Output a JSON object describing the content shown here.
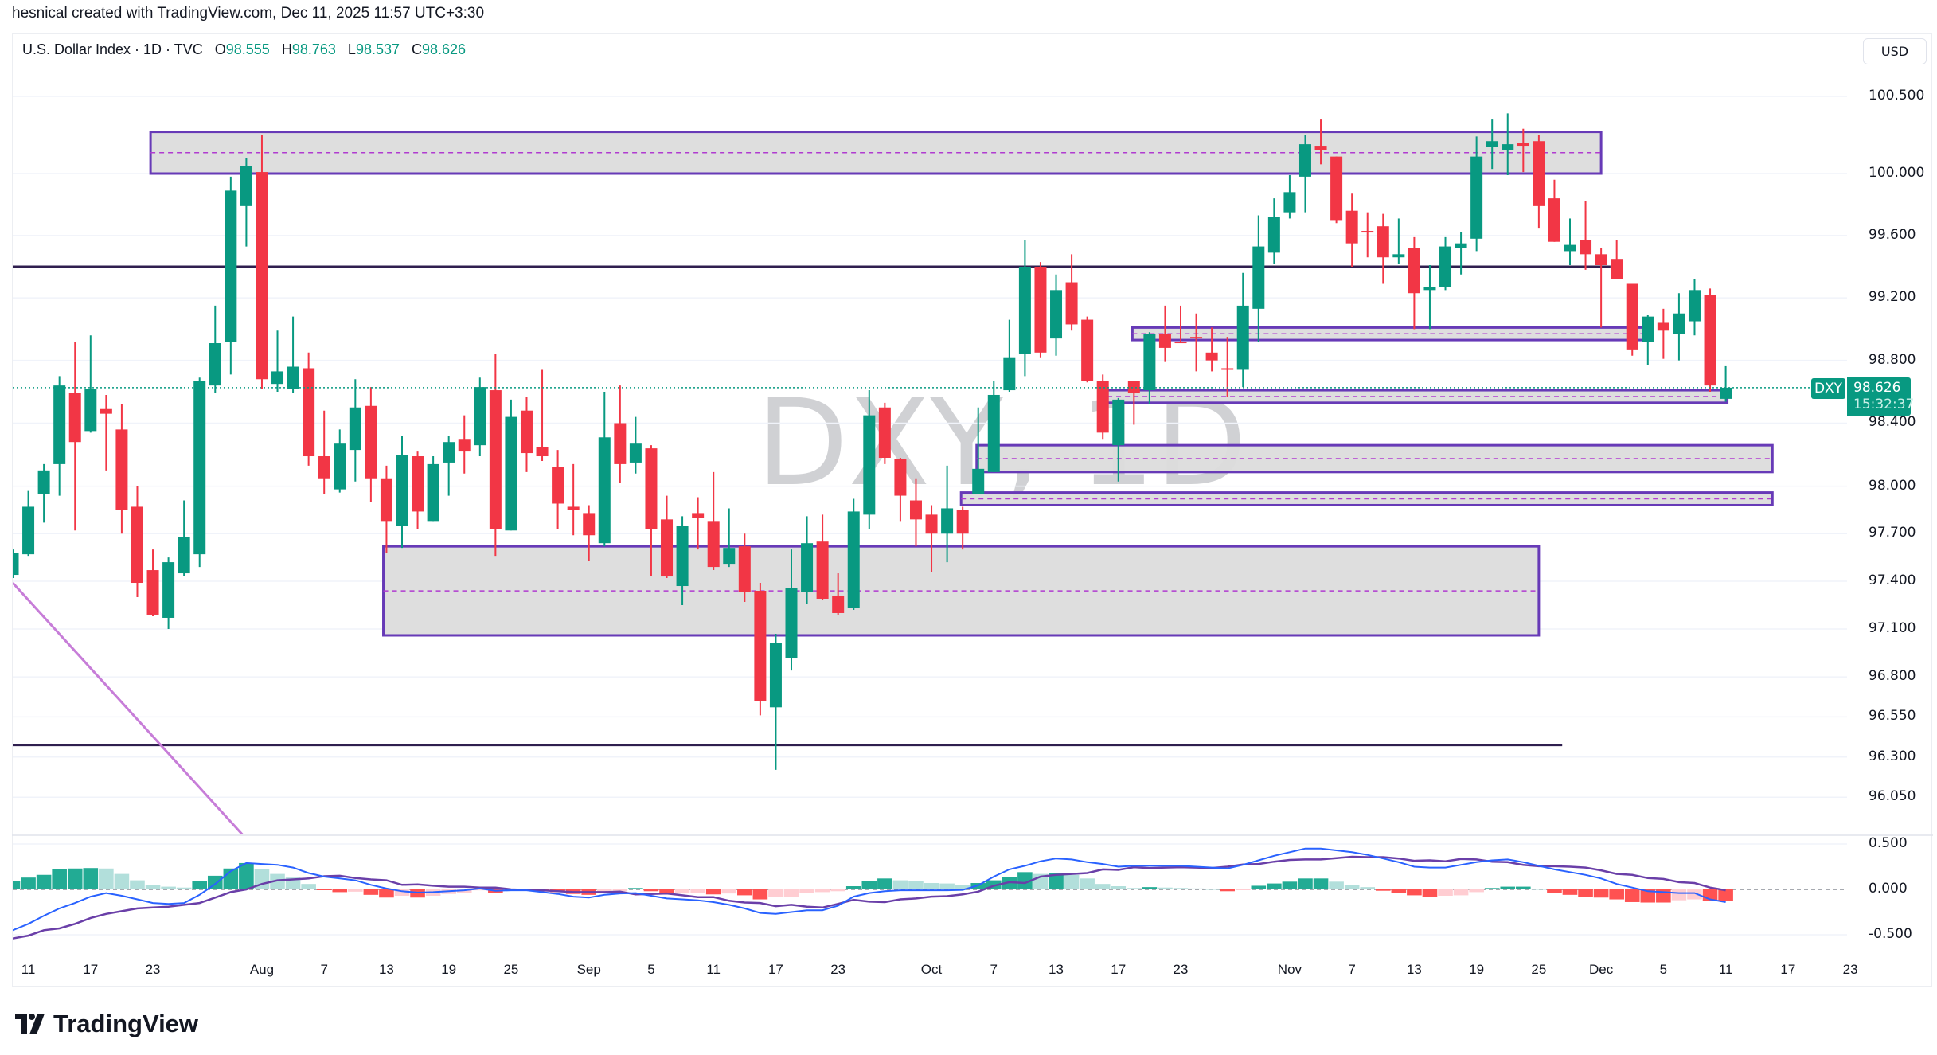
{
  "credit": "hesnical created with TradingView.com, Dec 11, 2025 11:57 UTC+3:30",
  "legend": {
    "symbol": "U.S. Dollar Index · 1D · TVC",
    "open_label": "O",
    "open": "98.555",
    "high_label": "H",
    "high": "98.763",
    "low_label": "L",
    "low": "98.537",
    "close_label": "C",
    "close": "98.626"
  },
  "currency_button": "USD",
  "watermark": "DXY, 1D",
  "logo": "TradingView",
  "last_price": {
    "symbol": "DXY",
    "price": "98.626",
    "countdown": "15:32:37"
  },
  "colors": {
    "up": "#089981",
    "down": "#f23645",
    "zone_fill": "#dcdcdc",
    "zone_border": "#673ab7",
    "zone_mid": "#b03bd0",
    "level_line": "#2f1f4f",
    "trend_line": "#c77dd8",
    "macd_line": "#2962ff",
    "signal_line": "#6a3fa8",
    "hist_up_strong": "#22ab94",
    "hist_up_weak": "#b2dfdb",
    "hist_down_strong": "#ff5252",
    "hist_down_weak": "#ffcdd2"
  },
  "chart_data": {
    "type": "candlestick",
    "title": "U.S. Dollar Index · 1D · TVC",
    "scale": "log",
    "grid": true,
    "candle_fields": [
      "open",
      "high",
      "low",
      "close"
    ],
    "candles": [
      [
        97.44,
        97.6,
        97.42,
        97.58
      ],
      [
        97.57,
        97.97,
        97.56,
        97.87
      ],
      [
        97.95,
        98.14,
        97.77,
        98.1
      ],
      [
        98.14,
        98.7,
        97.94,
        98.64
      ],
      [
        98.59,
        98.92,
        97.72,
        98.28
      ],
      [
        98.35,
        98.96,
        98.34,
        98.62
      ],
      [
        98.49,
        98.58,
        98.1,
        98.46
      ],
      [
        98.36,
        98.52,
        97.7,
        97.85
      ],
      [
        97.87,
        98.0,
        97.3,
        97.39
      ],
      [
        97.47,
        97.6,
        97.18,
        97.19
      ],
      [
        97.17,
        97.55,
        97.1,
        97.52
      ],
      [
        97.45,
        97.91,
        97.43,
        97.68
      ],
      [
        97.57,
        98.69,
        97.49,
        98.67
      ],
      [
        98.64,
        99.15,
        98.59,
        98.91
      ],
      [
        98.92,
        99.98,
        98.71,
        99.89
      ],
      [
        99.79,
        100.1,
        99.53,
        100.05
      ],
      [
        100.01,
        100.25,
        98.62,
        98.68
      ],
      [
        98.65,
        98.99,
        98.6,
        98.73
      ],
      [
        98.62,
        99.08,
        98.59,
        98.76
      ],
      [
        98.75,
        98.85,
        98.13,
        98.19
      ],
      [
        98.19,
        98.48,
        97.95,
        98.05
      ],
      [
        97.98,
        98.36,
        97.96,
        98.27
      ],
      [
        98.23,
        98.68,
        98.03,
        98.5
      ],
      [
        98.51,
        98.63,
        97.9,
        98.05
      ],
      [
        98.05,
        98.13,
        97.58,
        97.78
      ],
      [
        97.75,
        98.32,
        97.61,
        98.2
      ],
      [
        98.19,
        98.22,
        97.73,
        97.84
      ],
      [
        97.78,
        98.19,
        97.78,
        98.14
      ],
      [
        98.15,
        98.32,
        97.94,
        98.28
      ],
      [
        98.3,
        98.45,
        98.08,
        98.22
      ],
      [
        98.26,
        98.69,
        98.19,
        98.63
      ],
      [
        98.61,
        98.84,
        97.56,
        97.73
      ],
      [
        97.72,
        98.55,
        97.72,
        98.44
      ],
      [
        98.48,
        98.57,
        98.09,
        98.21
      ],
      [
        98.25,
        98.74,
        98.16,
        98.19
      ],
      [
        98.12,
        98.23,
        97.73,
        97.89
      ],
      [
        97.87,
        98.14,
        97.69,
        97.85
      ],
      [
        97.83,
        97.88,
        97.53,
        97.69
      ],
      [
        97.64,
        98.6,
        97.62,
        98.31
      ],
      [
        98.4,
        98.64,
        98.02,
        98.14
      ],
      [
        98.15,
        98.44,
        98.08,
        98.27
      ],
      [
        98.24,
        98.26,
        97.43,
        97.73
      ],
      [
        97.79,
        97.94,
        97.42,
        97.43
      ],
      [
        97.37,
        97.81,
        97.25,
        97.75
      ],
      [
        97.83,
        97.93,
        97.6,
        97.8
      ],
      [
        97.78,
        98.09,
        97.47,
        97.49
      ],
      [
        97.51,
        97.86,
        97.49,
        97.61
      ],
      [
        97.62,
        97.7,
        97.27,
        97.33
      ],
      [
        97.34,
        97.39,
        96.56,
        96.65
      ],
      [
        96.61,
        97.07,
        96.22,
        97.01
      ],
      [
        96.92,
        97.6,
        96.84,
        97.36
      ],
      [
        97.33,
        97.81,
        97.26,
        97.64
      ],
      [
        97.65,
        97.82,
        97.28,
        97.29
      ],
      [
        97.31,
        97.45,
        97.19,
        97.2
      ],
      [
        97.23,
        97.92,
        97.22,
        97.84
      ],
      [
        97.82,
        98.61,
        97.73,
        98.45
      ],
      [
        98.5,
        98.53,
        98.14,
        98.18
      ],
      [
        98.17,
        98.18,
        97.78,
        97.94
      ],
      [
        97.91,
        98.05,
        97.62,
        97.79
      ],
      [
        97.82,
        97.88,
        97.46,
        97.7
      ],
      [
        97.7,
        98.13,
        97.52,
        97.86
      ],
      [
        97.85,
        97.87,
        97.6,
        97.7
      ],
      [
        97.95,
        98.5,
        97.95,
        98.11
      ],
      [
        98.09,
        98.67,
        98.09,
        98.58
      ],
      [
        98.61,
        99.06,
        98.6,
        98.82
      ],
      [
        98.84,
        99.57,
        98.7,
        99.4
      ],
      [
        99.4,
        99.43,
        98.82,
        98.85
      ],
      [
        98.94,
        99.35,
        98.83,
        99.25
      ],
      [
        99.3,
        99.48,
        98.99,
        99.03
      ],
      [
        99.06,
        99.08,
        98.66,
        98.67
      ],
      [
        98.67,
        98.71,
        98.3,
        98.34
      ],
      [
        98.26,
        98.56,
        98.03,
        98.55
      ],
      [
        98.67,
        98.67,
        98.39,
        98.59
      ],
      [
        98.61,
        98.98,
        98.52,
        98.97
      ],
      [
        98.97,
        99.15,
        98.79,
        98.88
      ],
      [
        98.92,
        99.15,
        98.91,
        98.91
      ],
      [
        98.95,
        99.1,
        98.73,
        98.94
      ],
      [
        98.85,
        99.01,
        98.73,
        98.8
      ],
      [
        98.75,
        98.95,
        98.57,
        98.74
      ],
      [
        98.74,
        99.36,
        98.63,
        99.15
      ],
      [
        99.13,
        99.73,
        98.92,
        99.53
      ],
      [
        99.49,
        99.84,
        99.42,
        99.72
      ],
      [
        99.75,
        99.99,
        99.71,
        99.88
      ],
      [
        99.98,
        100.25,
        99.75,
        100.19
      ],
      [
        100.18,
        100.35,
        100.06,
        100.15
      ],
      [
        100.11,
        100.11,
        99.68,
        99.7
      ],
      [
        99.76,
        99.87,
        99.4,
        99.55
      ],
      [
        99.63,
        99.75,
        99.46,
        99.62
      ],
      [
        99.66,
        99.74,
        99.29,
        99.46
      ],
      [
        99.46,
        99.71,
        99.42,
        99.48
      ],
      [
        99.52,
        99.59,
        99.0,
        99.23
      ],
      [
        99.25,
        99.41,
        99.0,
        99.27
      ],
      [
        99.27,
        99.59,
        99.25,
        99.53
      ],
      [
        99.52,
        99.62,
        99.35,
        99.55
      ],
      [
        99.58,
        100.24,
        99.5,
        100.11
      ],
      [
        100.17,
        100.35,
        100.03,
        100.21
      ],
      [
        100.15,
        100.39,
        99.99,
        100.19
      ],
      [
        100.2,
        100.29,
        100.01,
        100.18
      ],
      [
        100.21,
        100.25,
        99.65,
        99.79
      ],
      [
        99.84,
        99.96,
        99.56,
        99.56
      ],
      [
        99.5,
        99.71,
        99.41,
        99.54
      ],
      [
        99.57,
        99.82,
        99.38,
        99.48
      ],
      [
        99.48,
        99.52,
        99.01,
        99.41
      ],
      [
        99.45,
        99.57,
        99.32,
        99.32
      ],
      [
        99.29,
        99.29,
        98.83,
        98.87
      ],
      [
        98.92,
        99.09,
        98.77,
        99.08
      ],
      [
        99.04,
        99.13,
        98.81,
        98.99
      ],
      [
        98.97,
        99.23,
        98.8,
        99.1
      ],
      [
        99.05,
        99.32,
        98.96,
        99.25
      ],
      [
        99.22,
        99.26,
        98.6,
        98.64
      ],
      [
        98.555,
        98.763,
        98.537,
        98.626
      ]
    ],
    "price_axis": {
      "labels": [
        "100.500",
        "100.000",
        "99.600",
        "99.200",
        "98.800",
        "98.400",
        "98.000",
        "97.700",
        "97.400",
        "97.100",
        "96.800",
        "96.550",
        "96.300",
        "96.050"
      ],
      "values": [
        100.5,
        100.0,
        99.6,
        99.2,
        98.8,
        98.4,
        98.0,
        97.7,
        97.4,
        97.1,
        96.8,
        96.55,
        96.3,
        96.05
      ]
    },
    "time_axis": [
      {
        "label": "11",
        "bar": 1
      },
      {
        "label": "17",
        "bar": 5
      },
      {
        "label": "23",
        "bar": 9
      },
      {
        "label": "Aug",
        "bar": 16
      },
      {
        "label": "7",
        "bar": 20
      },
      {
        "label": "13",
        "bar": 24
      },
      {
        "label": "19",
        "bar": 28
      },
      {
        "label": "25",
        "bar": 32
      },
      {
        "label": "Sep",
        "bar": 37
      },
      {
        "label": "5",
        "bar": 41
      },
      {
        "label": "11",
        "bar": 45
      },
      {
        "label": "17",
        "bar": 49
      },
      {
        "label": "23",
        "bar": 53
      },
      {
        "label": "Oct",
        "bar": 59
      },
      {
        "label": "7",
        "bar": 63
      },
      {
        "label": "13",
        "bar": 67
      },
      {
        "label": "17",
        "bar": 71
      },
      {
        "label": "23",
        "bar": 75
      },
      {
        "label": "Nov",
        "bar": 82
      },
      {
        "label": "7",
        "bar": 86
      },
      {
        "label": "13",
        "bar": 90
      },
      {
        "label": "19",
        "bar": 94
      },
      {
        "label": "25",
        "bar": 98
      },
      {
        "label": "Dec",
        "bar": 102
      },
      {
        "label": "5",
        "bar": 106
      },
      {
        "label": "11",
        "bar": 110
      },
      {
        "label": "17",
        "bar": 114
      },
      {
        "label": "23",
        "bar": 118
      }
    ],
    "drawings": {
      "zones": [
        {
          "from_bar": 8.85,
          "to_bar": 102.0,
          "top": 100.27,
          "bottom": 100.0
        },
        {
          "from_bar": 23.8,
          "to_bar": 98.0,
          "top": 97.62,
          "bottom": 97.06
        },
        {
          "from_bar": 71.9,
          "to_bar": 104.7,
          "top": 99.01,
          "bottom": 98.93
        },
        {
          "from_bar": 70.3,
          "to_bar": 110.1,
          "top": 98.61,
          "bottom": 98.53
        },
        {
          "from_bar": 61.9,
          "to_bar": 113.0,
          "top": 98.26,
          "bottom": 98.09
        },
        {
          "from_bar": 60.9,
          "to_bar": 113.0,
          "top": 97.96,
          "bottom": 97.88
        }
      ],
      "levels": [
        {
          "price": 99.4,
          "from_bar": -1,
          "to_bar": 102.6
        },
        {
          "price": 96.375,
          "from_bar": -1,
          "to_bar": 99.5
        }
      ],
      "trend_lines": [
        {
          "from": {
            "bar": 0,
            "price": 97.39
          },
          "to": {
            "bar": 15.4,
            "price": 95.75
          }
        }
      ]
    },
    "macd": {
      "axis_labels": [
        "0.500",
        "0.000",
        "-0.500"
      ],
      "axis_values": [
        0.5,
        0,
        -0.5
      ],
      "macd": [
        -0.45,
        -0.38,
        -0.29,
        -0.21,
        -0.15,
        -0.08,
        -0.04,
        -0.07,
        -0.11,
        -0.15,
        -0.16,
        -0.15,
        -0.06,
        0.06,
        0.2,
        0.29,
        0.28,
        0.27,
        0.24,
        0.18,
        0.14,
        0.12,
        0.1,
        0.05,
        0.01,
        -0.02,
        -0.035,
        -0.03,
        -0.02,
        -0.01,
        0.01,
        -0.015,
        -0.01,
        -0.01,
        -0.03,
        -0.05,
        -0.08,
        -0.09,
        -0.06,
        -0.045,
        -0.04,
        -0.07,
        -0.1,
        -0.11,
        -0.12,
        -0.14,
        -0.17,
        -0.21,
        -0.26,
        -0.27,
        -0.25,
        -0.23,
        -0.23,
        -0.18,
        -0.08,
        -0.04,
        -0.02,
        -0.01,
        -0.01,
        -0.01,
        -0.01,
        -0.005,
        0.045,
        0.14,
        0.22,
        0.26,
        0.31,
        0.34,
        0.33,
        0.3,
        0.28,
        0.25,
        0.26,
        0.26,
        0.26,
        0.26,
        0.25,
        0.24,
        0.23,
        0.27,
        0.32,
        0.37,
        0.41,
        0.45,
        0.45,
        0.43,
        0.41,
        0.38,
        0.34,
        0.3,
        0.25,
        0.24,
        0.24,
        0.27,
        0.3,
        0.32,
        0.33,
        0.3,
        0.26,
        0.22,
        0.19,
        0.16,
        0.12,
        0.06,
        0.02,
        -0.02,
        -0.03,
        -0.04,
        -0.04,
        -0.11,
        -0.14
      ],
      "histogram": [
        0.09,
        0.13,
        0.16,
        0.22,
        0.23,
        0.235,
        0.23,
        0.17,
        0.1,
        0.05,
        0.03,
        0.02,
        0.09,
        0.15,
        0.23,
        0.29,
        0.22,
        0.17,
        0.13,
        0.06,
        -0.005,
        -0.03,
        -0.025,
        -0.06,
        -0.09,
        -0.07,
        -0.09,
        -0.07,
        -0.05,
        -0.04,
        -0.01,
        -0.035,
        -0.01,
        -0.005,
        -0.02,
        -0.03,
        -0.05,
        -0.06,
        -0.03,
        -0.02,
        0.015,
        -0.02,
        -0.055,
        -0.045,
        -0.035,
        -0.055,
        -0.045,
        -0.065,
        -0.11,
        -0.085,
        -0.08,
        -0.04,
        -0.03,
        -0.02,
        0.035,
        0.095,
        0.12,
        0.1,
        0.09,
        0.07,
        0.065,
        0.05,
        0.07,
        0.1,
        0.14,
        0.19,
        0.17,
        0.18,
        0.16,
        0.12,
        0.06,
        0.035,
        0.015,
        0.025,
        0.02,
        0.015,
        0.01,
        0.005,
        -0.02,
        -0.005,
        0.04,
        0.065,
        0.085,
        0.12,
        0.12,
        0.085,
        0.05,
        0.025,
        -0.015,
        -0.04,
        -0.065,
        -0.08,
        -0.07,
        -0.065,
        -0.03,
        0.015,
        0.03,
        0.03,
        0.005,
        -0.035,
        -0.06,
        -0.08,
        -0.09,
        -0.11,
        -0.14,
        -0.145,
        -0.145,
        -0.12,
        -0.11,
        -0.13,
        -0.13
      ]
    }
  }
}
